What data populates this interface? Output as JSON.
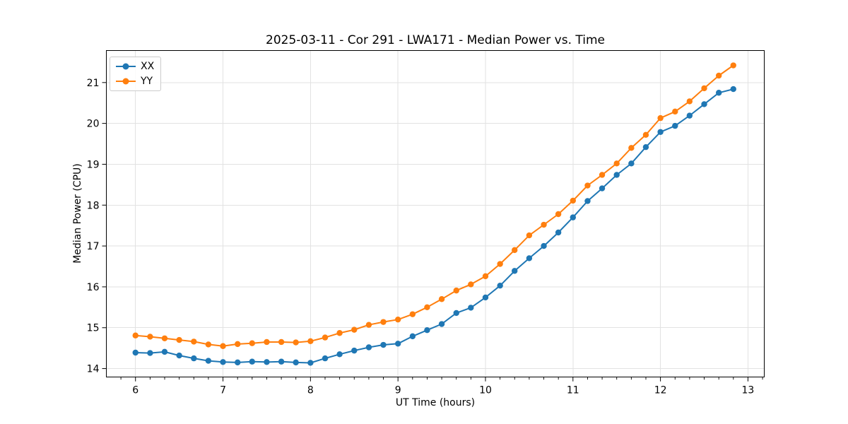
{
  "window": {
    "title": "2025-03-11 - Cor 291 - LWA171 - Median Power vs. Time"
  },
  "chart_data": {
    "type": "line",
    "title": "2025-03-11 - Cor 291 - LWA171 - Median Power vs. Time",
    "xlabel": "UT Time (hours)",
    "ylabel": "Median Power (CPU)",
    "x": [
      6.0,
      6.167,
      6.333,
      6.5,
      6.667,
      6.833,
      7.0,
      7.167,
      7.333,
      7.5,
      7.667,
      7.833,
      8.0,
      8.167,
      8.333,
      8.5,
      8.667,
      8.833,
      9.0,
      9.167,
      9.333,
      9.5,
      9.667,
      9.833,
      10.0,
      10.167,
      10.333,
      10.5,
      10.667,
      10.833,
      11.0,
      11.167,
      11.333,
      11.5,
      11.667,
      11.833,
      12.0,
      12.167,
      12.333,
      12.5,
      12.667,
      12.833
    ],
    "series": [
      {
        "name": "XX",
        "color": "#1f77b4",
        "values": [
          14.39,
          14.38,
          14.41,
          14.32,
          14.25,
          14.19,
          14.16,
          14.15,
          14.17,
          14.16,
          14.17,
          14.15,
          14.14,
          14.25,
          14.35,
          14.44,
          14.52,
          14.58,
          14.61,
          14.79,
          14.94,
          15.09,
          15.36,
          15.49,
          15.74,
          16.03,
          16.39,
          16.7,
          17.0,
          17.33,
          17.7,
          18.1,
          18.41,
          18.74,
          19.02,
          19.42,
          19.79,
          19.94,
          20.19,
          20.47,
          20.75,
          20.84
        ]
      },
      {
        "name": "YY",
        "color": "#ff7f0e",
        "values": [
          14.81,
          14.78,
          14.74,
          14.7,
          14.66,
          14.59,
          14.55,
          14.6,
          14.62,
          14.65,
          14.65,
          14.64,
          14.67,
          14.76,
          14.87,
          14.95,
          15.07,
          15.14,
          15.2,
          15.33,
          15.5,
          15.7,
          15.91,
          16.06,
          16.26,
          16.56,
          16.9,
          17.26,
          17.52,
          17.78,
          18.11,
          18.48,
          18.74,
          19.02,
          19.4,
          19.72,
          20.13,
          20.29,
          20.54,
          20.86,
          21.17,
          21.42
        ]
      }
    ],
    "xticks": [
      6,
      7,
      8,
      9,
      10,
      11,
      12,
      13
    ],
    "yticks": [
      14,
      15,
      16,
      17,
      18,
      19,
      20,
      21
    ],
    "xlim": [
      5.667,
      13.188
    ],
    "ylim": [
      13.79,
      21.78
    ],
    "x_minor_step": 0.16667,
    "grid": true,
    "legend": {
      "position": "upper left",
      "entries": [
        "XX",
        "YY"
      ]
    },
    "marker": "circle",
    "grid_color": "#e2e2e2",
    "axis_color": "#000000"
  }
}
